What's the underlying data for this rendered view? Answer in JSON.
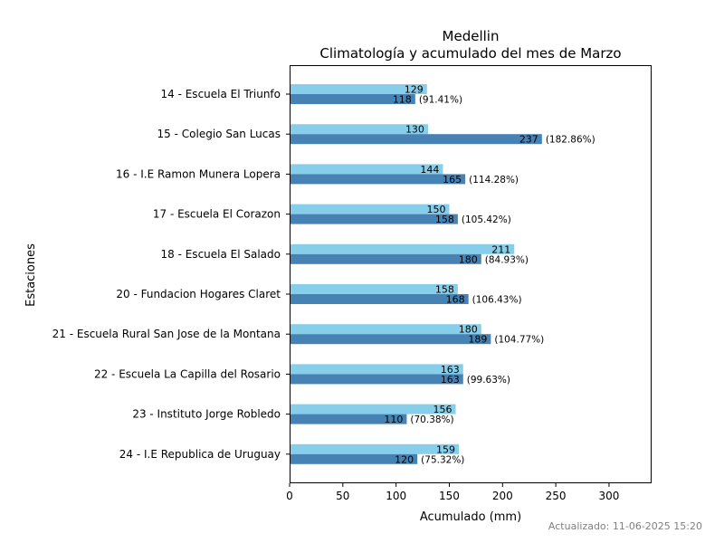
{
  "chart_data": {
    "type": "bar",
    "orientation": "horizontal",
    "title": "Medellin",
    "subtitle": "Climatología y acumulado del mes de Marzo",
    "xlabel": "Acumulado (mm)",
    "ylabel": "Estaciones",
    "xlim": [
      0,
      340
    ],
    "xticks": [
      0,
      50,
      100,
      150,
      200,
      250,
      300
    ],
    "grid": false,
    "categories": [
      "14 - Escuela El Triunfo",
      "15 - Colegio San Lucas",
      "16 - I.E Ramon Munera Lopera",
      "17 - Escuela El Corazon",
      "18 - Escuela El Salado",
      "20 - Fundacion Hogares Claret",
      "21 - Escuela Rural San Jose de la Montana",
      "22 - Escuela La Capilla del Rosario",
      "23 - Instituto Jorge Robledo",
      "24 - I.E Republica de Uruguay"
    ],
    "series": [
      {
        "color": "#87ceeb",
        "values": [
          129,
          130,
          144,
          150,
          211,
          158,
          180,
          163,
          156,
          159
        ],
        "labels": [
          "129",
          "130",
          "144",
          "150",
          "211",
          "158",
          "180",
          "163",
          "156",
          "159"
        ]
      },
      {
        "color": "#4682b4",
        "values": [
          118,
          237,
          165,
          158,
          180,
          168,
          189,
          163,
          110,
          120
        ],
        "labels": [
          "118",
          "237",
          "165",
          "158",
          "180",
          "168",
          "189",
          "163",
          "110",
          "120"
        ],
        "percent_labels": [
          "(91.41%)",
          "(182.86%)",
          "(114.28%)",
          "(105.42%)",
          "(84.93%)",
          "(106.43%)",
          "(104.77%)",
          "(99.63%)",
          "(70.38%)",
          "(75.32%)"
        ]
      }
    ]
  },
  "footer": {
    "updated": "Actualizado: 11-06-2025 15:20"
  }
}
